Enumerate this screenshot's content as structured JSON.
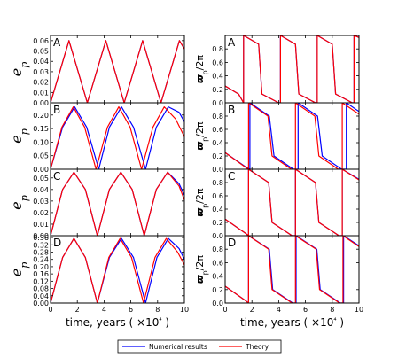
{
  "figure": {
    "legend": {
      "entries": [
        {
          "label": "Numerical results",
          "color": "#0000ff"
        },
        {
          "label": "Theory",
          "color": "#ff0000"
        }
      ]
    }
  },
  "chart_data": [
    {
      "type": "line",
      "panel": "A",
      "column": "left",
      "ylabel": "e_p",
      "xlabel": "",
      "xlim": [
        0,
        10
      ],
      "ylim": [
        0,
        0.065
      ],
      "yticks": [
        "0.00",
        "0.01",
        "0.02",
        "0.03",
        "0.04",
        "0.05",
        "0.06"
      ],
      "xticks": [],
      "grid": false,
      "series": [
        {
          "name": "Numerical results",
          "color": "#0000ff",
          "x": [
            0,
            1.38,
            2.75,
            4.13,
            5.5,
            6.88,
            8.25,
            9.63,
            10
          ],
          "y": [
            0,
            0.06,
            0,
            0.06,
            0,
            0.06,
            0,
            0.06,
            0.052
          ]
        },
        {
          "name": "Theory",
          "color": "#ff0000",
          "x": [
            0,
            1.38,
            2.75,
            4.13,
            5.5,
            6.88,
            8.25,
            9.63,
            10
          ],
          "y": [
            0,
            0.06,
            0,
            0.06,
            0,
            0.06,
            0,
            0.06,
            0.052
          ]
        }
      ]
    },
    {
      "type": "line",
      "panel": "A",
      "column": "right",
      "ylabel": "ϖ_p/2π",
      "xlabel": "",
      "xlim": [
        0,
        10
      ],
      "ylim": [
        0,
        1.0
      ],
      "yticks": [
        "0.0",
        "0.2",
        "0.4",
        "0.6",
        "0.8"
      ],
      "xticks": [],
      "grid": false,
      "series": [
        {
          "name": "Numerical results",
          "color": "#0000ff",
          "x": [
            0,
            1.0,
            1.38,
            1.38,
            2.5,
            2.75,
            4.0,
            4.13,
            4.13,
            5.25,
            5.5,
            6.75,
            6.88,
            6.88,
            8.0,
            8.25,
            9.5,
            9.63,
            9.63,
            10
          ],
          "y": [
            0.25,
            0.13,
            0.0,
            1.0,
            0.87,
            0.13,
            0.0,
            0.0,
            1.0,
            0.87,
            0.13,
            0.0,
            0.0,
            1.0,
            0.87,
            0.13,
            0.0,
            0.0,
            1.0,
            0.97
          ]
        },
        {
          "name": "Theory",
          "color": "#ff0000",
          "x": [
            0,
            1.0,
            1.38,
            1.38,
            2.5,
            2.75,
            4.0,
            4.13,
            4.13,
            5.25,
            5.5,
            6.75,
            6.88,
            6.88,
            8.0,
            8.25,
            9.5,
            9.63,
            9.63,
            10
          ],
          "y": [
            0.25,
            0.13,
            0.0,
            1.0,
            0.87,
            0.13,
            0.0,
            0.0,
            1.0,
            0.87,
            0.13,
            0.0,
            0.0,
            1.0,
            0.87,
            0.13,
            0.0,
            0.0,
            1.0,
            0.97
          ]
        }
      ]
    },
    {
      "type": "line",
      "panel": "B",
      "column": "left",
      "ylabel": "e_p",
      "xlabel": "",
      "xlim": [
        0,
        10
      ],
      "ylim": [
        0,
        0.245
      ],
      "yticks": [
        "0.00",
        "0.05",
        "0.10",
        "0.15",
        "0.20"
      ],
      "xticks": [],
      "grid": false,
      "series": [
        {
          "name": "Numerical results",
          "color": "#0000ff",
          "x": [
            0,
            0.9,
            1.8,
            2.7,
            3.6,
            4.4,
            5.3,
            6.2,
            7.1,
            7.9,
            8.8,
            9.6,
            10
          ],
          "y": [
            0,
            0.155,
            0.23,
            0.155,
            0,
            0.155,
            0.23,
            0.155,
            0,
            0.155,
            0.23,
            0.21,
            0.175
          ]
        },
        {
          "name": "Theory",
          "color": "#ff0000",
          "x": [
            0,
            0.85,
            1.7,
            2.55,
            3.4,
            4.25,
            5.1,
            5.95,
            6.8,
            7.65,
            8.5,
            9.35,
            10
          ],
          "y": [
            0,
            0.155,
            0.23,
            0.155,
            0,
            0.155,
            0.23,
            0.155,
            0,
            0.155,
            0.23,
            0.185,
            0.12
          ]
        }
      ]
    },
    {
      "type": "line",
      "panel": "B",
      "column": "right",
      "ylabel": "ϖ_p/2π",
      "xlabel": "",
      "xlim": [
        0,
        10
      ],
      "ylim": [
        0,
        1.0
      ],
      "yticks": [
        "0.0",
        "0.2",
        "0.4",
        "0.6",
        "0.8"
      ],
      "xticks": [],
      "grid": false,
      "series": [
        {
          "name": "Numerical results",
          "color": "#0000ff",
          "x": [
            0,
            1.5,
            1.85,
            1.85,
            3.3,
            3.65,
            5.1,
            5.45,
            5.45,
            6.9,
            7.25,
            8.7,
            9.05,
            9.05,
            10
          ],
          "y": [
            0.25,
            0.04,
            0.0,
            1.0,
            0.8,
            0.2,
            0.0,
            0.0,
            1.0,
            0.8,
            0.2,
            0.0,
            0.0,
            1.0,
            0.87
          ]
        },
        {
          "name": "Theory",
          "color": "#ff0000",
          "x": [
            0,
            1.45,
            1.75,
            1.75,
            3.2,
            3.5,
            4.95,
            5.25,
            5.25,
            6.7,
            7.0,
            8.45,
            8.75,
            8.75,
            10
          ],
          "y": [
            0.25,
            0.04,
            0.0,
            1.0,
            0.8,
            0.2,
            0.0,
            0.0,
            1.0,
            0.8,
            0.2,
            0.0,
            0.0,
            1.0,
            0.83
          ]
        }
      ]
    },
    {
      "type": "line",
      "panel": "C",
      "column": "left",
      "ylabel": "e_p",
      "xlabel": "",
      "xlim": [
        0,
        10
      ],
      "ylim": [
        0,
        0.0575
      ],
      "yticks": [
        "0.00",
        "0.01",
        "0.02",
        "0.03",
        "0.04",
        "0.05"
      ],
      "xticks": [],
      "grid": false,
      "series": [
        {
          "name": "Numerical results",
          "color": "#0000ff",
          "x": [
            0,
            0.9,
            1.75,
            2.6,
            3.5,
            4.4,
            5.25,
            6.1,
            7.0,
            7.9,
            8.75,
            9.6,
            10
          ],
          "y": [
            0,
            0.04,
            0.055,
            0.04,
            0,
            0.04,
            0.055,
            0.04,
            0,
            0.04,
            0.055,
            0.045,
            0.035
          ]
        },
        {
          "name": "Theory",
          "color": "#ff0000",
          "x": [
            0,
            0.9,
            1.75,
            2.6,
            3.5,
            4.4,
            5.25,
            6.1,
            7.0,
            7.9,
            8.75,
            9.6,
            10
          ],
          "y": [
            0,
            0.04,
            0.055,
            0.04,
            0,
            0.04,
            0.055,
            0.04,
            0,
            0.04,
            0.055,
            0.043,
            0.031
          ]
        }
      ]
    },
    {
      "type": "line",
      "panel": "C",
      "column": "right",
      "ylabel": "ϖ_p/2π",
      "xlabel": "",
      "xlim": [
        0,
        10
      ],
      "ylim": [
        0,
        1.0
      ],
      "yticks": [
        "0.0",
        "0.2",
        "0.4",
        "0.6",
        "0.8"
      ],
      "xticks": [],
      "grid": false,
      "series": [
        {
          "name": "Numerical results",
          "color": "#0000ff",
          "x": [
            0,
            1.5,
            1.75,
            1.75,
            3.25,
            3.5,
            5.0,
            5.25,
            5.25,
            6.75,
            7.0,
            8.5,
            8.75,
            8.75,
            10
          ],
          "y": [
            0.25,
            0.04,
            0.0,
            1.0,
            0.8,
            0.2,
            0.0,
            0.0,
            1.0,
            0.8,
            0.2,
            0.0,
            0.0,
            1.0,
            0.85
          ]
        },
        {
          "name": "Theory",
          "color": "#ff0000",
          "x": [
            0,
            1.5,
            1.75,
            1.75,
            3.25,
            3.5,
            5.0,
            5.25,
            5.25,
            6.75,
            7.0,
            8.5,
            8.75,
            8.75,
            10
          ],
          "y": [
            0.25,
            0.04,
            0.0,
            1.0,
            0.8,
            0.2,
            0.0,
            0.0,
            1.0,
            0.8,
            0.2,
            0.0,
            0.0,
            1.0,
            0.84
          ]
        }
      ]
    },
    {
      "type": "line",
      "panel": "D",
      "column": "left",
      "ylabel": "e_p",
      "xlabel": "time, years ( ×10⁴ )",
      "xlim": [
        0,
        10
      ],
      "ylim": [
        0,
        0.37
      ],
      "yticks": [
        "0.00",
        "0.04",
        "0.08",
        "0.12",
        "0.16",
        "0.20",
        "0.24",
        "0.28",
        "0.32",
        "0.36"
      ],
      "xticks": [
        "0",
        "2",
        "4",
        "6",
        "8",
        "10"
      ],
      "grid": false,
      "series": [
        {
          "name": "Numerical results",
          "color": "#0000ff",
          "x": [
            0,
            0.9,
            1.75,
            2.6,
            3.5,
            4.4,
            5.3,
            6.2,
            7.1,
            7.95,
            8.8,
            9.6,
            10
          ],
          "y": [
            0,
            0.25,
            0.355,
            0.25,
            0,
            0.25,
            0.355,
            0.25,
            0,
            0.25,
            0.355,
            0.3,
            0.24
          ]
        },
        {
          "name": "Theory",
          "color": "#ff0000",
          "x": [
            0,
            0.9,
            1.75,
            2.6,
            3.5,
            4.35,
            5.2,
            6.05,
            6.95,
            7.8,
            8.65,
            9.5,
            10
          ],
          "y": [
            0,
            0.25,
            0.355,
            0.25,
            0,
            0.25,
            0.355,
            0.25,
            0,
            0.25,
            0.355,
            0.28,
            0.21
          ]
        }
      ]
    },
    {
      "type": "line",
      "panel": "D",
      "column": "right",
      "ylabel": "ϖ_p/2π",
      "xlabel": "time, years ( ×10⁴ )",
      "xlim": [
        0,
        10
      ],
      "ylim": [
        0,
        1.0
      ],
      "yticks": [
        "0.0",
        "0.2",
        "0.4",
        "0.6",
        "0.8"
      ],
      "xticks": [
        "0",
        "2",
        "4",
        "6",
        "8",
        "10"
      ],
      "grid": false,
      "series": [
        {
          "name": "Numerical results",
          "color": "#0000ff",
          "x": [
            0,
            1.5,
            1.75,
            1.75,
            3.3,
            3.55,
            5.05,
            5.3,
            5.3,
            6.85,
            7.1,
            8.6,
            8.85,
            8.85,
            10
          ],
          "y": [
            0.25,
            0.04,
            0.0,
            1.0,
            0.8,
            0.2,
            0.0,
            0.0,
            1.0,
            0.8,
            0.2,
            0.0,
            0.0,
            1.0,
            0.85
          ]
        },
        {
          "name": "Theory",
          "color": "#ff0000",
          "x": [
            0,
            1.5,
            1.75,
            1.75,
            3.25,
            3.5,
            5.0,
            5.25,
            5.25,
            6.8,
            7.05,
            8.55,
            8.8,
            8.8,
            10
          ],
          "y": [
            0.25,
            0.04,
            0.0,
            1.0,
            0.8,
            0.2,
            0.0,
            0.0,
            1.0,
            0.8,
            0.2,
            0.0,
            0.0,
            1.0,
            0.84
          ]
        }
      ]
    }
  ]
}
